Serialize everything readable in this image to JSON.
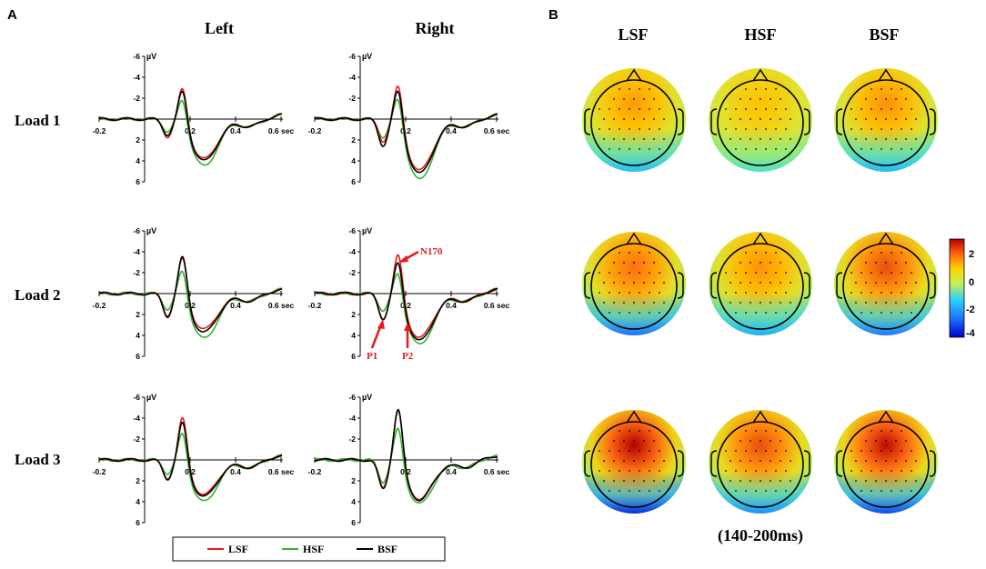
{
  "panel_a": {
    "letter": "A",
    "column_headers": [
      "Left",
      "Right"
    ],
    "row_headers": [
      "Load 1",
      "Load 2",
      "Load 3"
    ]
  },
  "panel_b": {
    "letter": "B",
    "column_headers": [
      "LSF",
      "HSF",
      "BSF"
    ],
    "time_window": "(140-200ms)",
    "colorbar": {
      "ticks": [
        "2",
        "0",
        "-2",
        "-4"
      ],
      "range": [
        -5,
        3
      ]
    }
  },
  "legend": {
    "items": [
      "LSF",
      "HSF",
      "BSF"
    ]
  },
  "colors": {
    "LSF": "#e41a1c",
    "HSF": "#33b233",
    "BSF": "#000000"
  },
  "annotations": {
    "n170": "N170",
    "p1": "P1",
    "p2": "P2"
  },
  "chart_data": {
    "type": "line",
    "xlabel": "sec",
    "ylabel": "µV",
    "x_ticks": [
      "-0.2",
      "0.2",
      "0.4",
      "0.6 sec"
    ],
    "y_ticks": [
      "-6",
      "-4",
      "-2",
      "2",
      "4",
      "6"
    ],
    "xlim": [
      -0.2,
      0.6
    ],
    "ylim": [
      -6,
      6
    ],
    "y_inverted": true,
    "peak_latencies_sec": {
      "P1": 0.1,
      "N170": 0.17,
      "P2": 0.26
    },
    "panels": [
      {
        "load": "Load 1",
        "hemisphere": "Left",
        "series": [
          {
            "name": "LSF",
            "P1": 1.6,
            "N170": -3.8,
            "P2": 3.8
          },
          {
            "name": "HSF",
            "P1": 1.1,
            "N170": -2.9,
            "P2": 4.5
          },
          {
            "name": "BSF",
            "P1": 1.4,
            "N170": -3.6,
            "P2": 4.0
          }
        ]
      },
      {
        "load": "Load 1",
        "hemisphere": "Right",
        "series": [
          {
            "name": "LSF",
            "P1": 2.0,
            "N170": -4.3,
            "P2": 4.9
          },
          {
            "name": "HSF",
            "P1": 1.6,
            "N170": -3.3,
            "P2": 5.8
          },
          {
            "name": "BSF",
            "P1": 2.4,
            "N170": -3.9,
            "P2": 5.2
          }
        ]
      },
      {
        "load": "Load 2",
        "hemisphere": "Left",
        "series": [
          {
            "name": "LSF",
            "P1": 2.0,
            "N170": -4.2,
            "P2": 3.4
          },
          {
            "name": "HSF",
            "P1": 1.4,
            "N170": -3.2,
            "P2": 4.3
          },
          {
            "name": "BSF",
            "P1": 2.1,
            "N170": -4.4,
            "P2": 3.7
          }
        ]
      },
      {
        "load": "Load 2",
        "hemisphere": "Right",
        "series": [
          {
            "name": "LSF",
            "P1": 2.3,
            "N170": -4.7,
            "P2": 4.2
          },
          {
            "name": "HSF",
            "P1": 1.5,
            "N170": -3.1,
            "P2": 4.9
          },
          {
            "name": "BSF",
            "P1": 2.3,
            "N170": -4.0,
            "P2": 4.5
          }
        ]
      },
      {
        "load": "Load 3",
        "hemisphere": "Left",
        "series": [
          {
            "name": "LSF",
            "P1": 1.8,
            "N170": -4.8,
            "P2": 3.3
          },
          {
            "name": "HSF",
            "P1": 1.2,
            "N170": -3.5,
            "P2": 4.0
          },
          {
            "name": "BSF",
            "P1": 1.7,
            "N170": -4.4,
            "P2": 3.5
          }
        ]
      },
      {
        "load": "Load 3",
        "hemisphere": "Right",
        "series": [
          {
            "name": "LSF",
            "P1": 2.6,
            "N170": -5.7,
            "P2": 3.7
          },
          {
            "name": "HSF",
            "P1": 2.0,
            "N170": -4.0,
            "P2": 4.2
          },
          {
            "name": "BSF",
            "P1": 2.7,
            "N170": -5.8,
            "P2": 3.8
          }
        ]
      }
    ],
    "topomaps": [
      {
        "load": "Load 1",
        "LSF": {
          "frontal": 1.5,
          "occipital": -2.6
        },
        "HSF": {
          "frontal": 1.0,
          "occipital": -1.6
        },
        "BSF": {
          "frontal": 1.6,
          "occipital": -2.7
        }
      },
      {
        "load": "Load 2",
        "LSF": {
          "frontal": 2.0,
          "occipital": -3.8
        },
        "HSF": {
          "frontal": 1.6,
          "occipital": -3.0
        },
        "BSF": {
          "frontal": 2.3,
          "occipital": -3.7
        }
      },
      {
        "load": "Load 3",
        "LSF": {
          "frontal": 3.0,
          "occipital": -4.6
        },
        "HSF": {
          "frontal": 2.3,
          "occipital": -3.4
        },
        "BSF": {
          "frontal": 2.9,
          "occipital": -4.3
        }
      }
    ]
  }
}
